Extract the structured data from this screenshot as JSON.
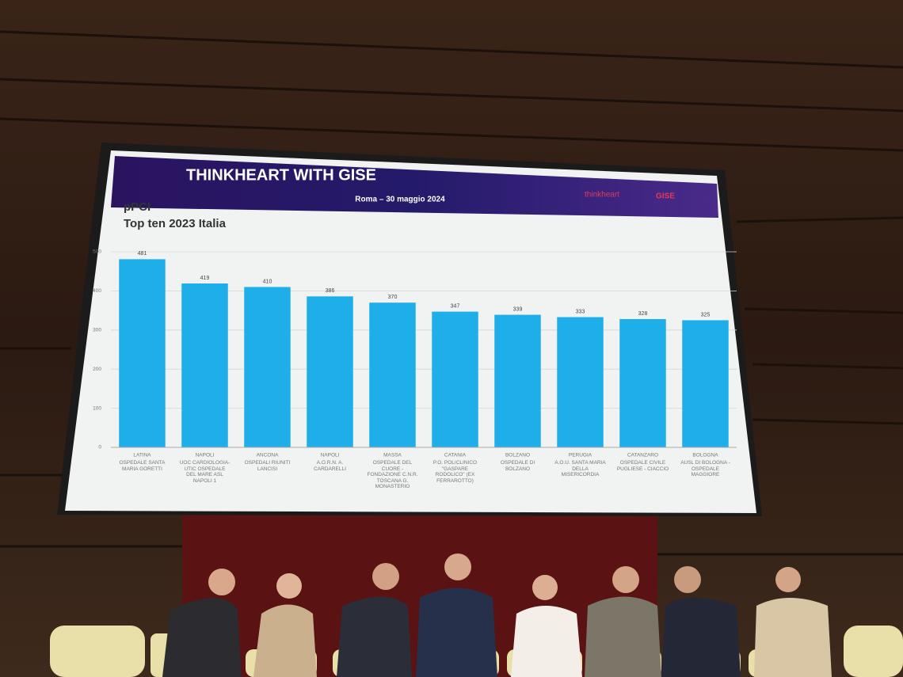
{
  "chart_data": {
    "type": "bar",
    "banner_title": "THINKHEART WITH GISE",
    "banner_subtitle": "Roma – 30 maggio 2024",
    "logos": [
      "thinkheart",
      "GISE"
    ],
    "title": "pPCI",
    "subtitle": "Top ten 2023 Italia",
    "categories": [
      "LATINA",
      "NAPOLI",
      "ANCONA",
      "NAPOLI",
      "MASSA",
      "CATANIA",
      "BOLZANO",
      "PERUGIA",
      "CATANZARO",
      "BOLOGNA"
    ],
    "hospitals": [
      "OSPEDALE SANTA MARIA GORETTI",
      "UOC CARDIOLOGIA-UTIC OSPEDALE DEL MARE ASL NAPOLI 1",
      "OSPEDALI RIUNITI LANCISI",
      "A.O.R.N. A. CARDARELLI",
      "OSPEDALE DEL CUORE - FONDAZIONE C.N.R. TOSCANA G. MONASTERIO",
      "P.O. POLICLINICO \"GASPARE RODOLICO\" (EX FERRAROTTO)",
      "OSPEDALE DI BOLZANO",
      "A.O.U. SANTA MARIA DELLA MISERICORDIA",
      "OSPEDALE CIVILE PUGLIESE - CIACCIO",
      "AUSL DI BOLOGNA - OSPEDALE MAGGIORE"
    ],
    "values": [
      481,
      419,
      410,
      386,
      370,
      347,
      339,
      333,
      328,
      325
    ],
    "color": "#1eaeea",
    "ylim": [
      0,
      500
    ],
    "yticks": [
      0,
      100,
      200,
      300,
      400,
      500
    ],
    "grid": true
  }
}
